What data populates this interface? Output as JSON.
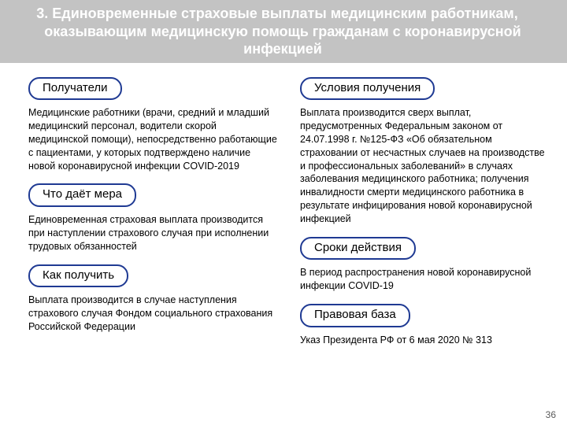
{
  "title": {
    "number": "3.",
    "text": "Единовременные страховые выплаты медицинским работникам, оказывающим медицинскую помощь гражданам с коронавирусной инфекцией"
  },
  "left": {
    "s1": {
      "label": "Получатели",
      "body": "Медицинские работники (врачи, средний и младший медицинский персонал, водители скорой медицинской помощи), непосредственно работающие с пациентами, у которых подтверждено наличие новой коронавирусной инфекции COVID-2019"
    },
    "s2": {
      "label": "Что даёт мера",
      "body": "Единовременная страховая выплата производится при наступлении страхового случая при исполнении трудовых обязанностей"
    },
    "s3": {
      "label": "Как получить",
      "body": "Выплата производится в случае наступления страхового случая Фондом социального страхования Российской Федерации"
    }
  },
  "right": {
    "s1": {
      "label": "Условия получения",
      "body": "Выплата производится сверх выплат, предусмотренных Федеральным законом от 24.07.1998 г. №125-ФЗ «Об обязательном страховании от несчастных случаев на производстве и профессиональных заболеваний» в случаях заболевания медицинского работника; получения инвалидности смерти медицинского работника в результате инфицирования новой коронавирусной инфекцией"
    },
    "s2": {
      "label": "Сроки действия",
      "body": "В период распространения новой коронавирусной инфекции COVID-19"
    },
    "s3": {
      "label": "Правовая база",
      "body": "Указ Президента РФ от 6 мая 2020 № 313"
    }
  },
  "page_number": "36",
  "colors": {
    "title_bg": "#c3c3c3",
    "title_fg": "#ffffff",
    "pill_border": "#1f3a93",
    "text": "#000000",
    "page_num": "#5a5a5a"
  }
}
